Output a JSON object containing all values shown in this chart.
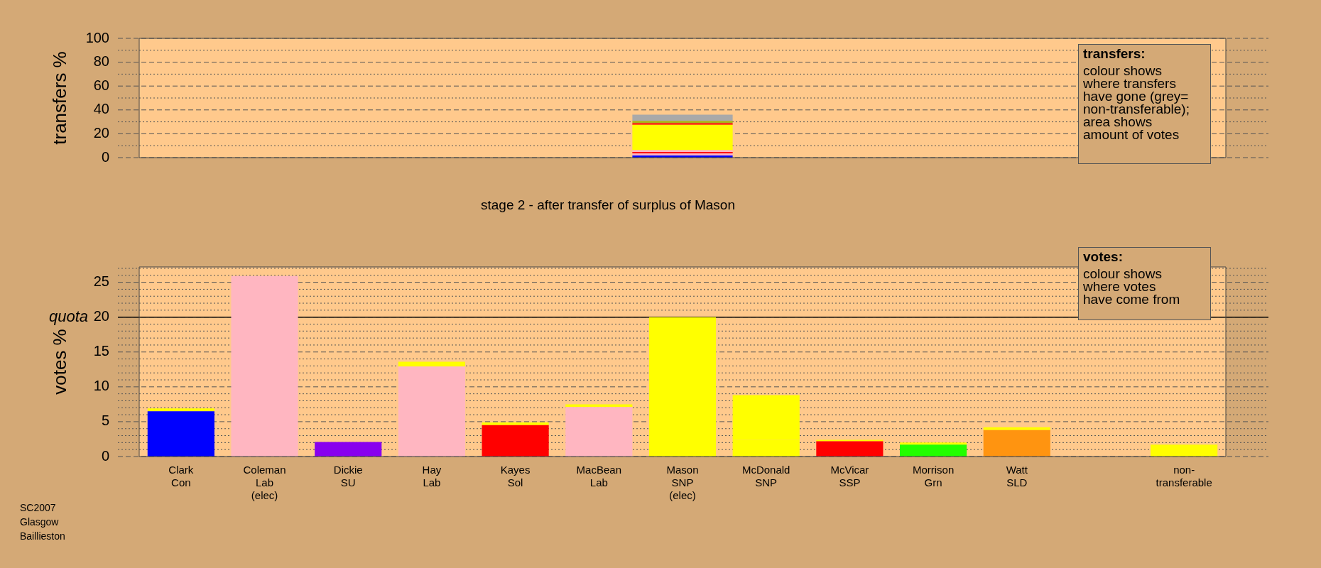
{
  "chart_data": [
    {
      "type": "bar",
      "stacked": true,
      "ylabel": "transfers %",
      "tick_labels": "y",
      "grid": true,
      "categories": [
        null,
        null,
        null,
        null,
        null,
        null,
        null,
        null,
        null,
        null,
        null,
        null,
        null
      ],
      "series": [
        {
          "color": "#0000ff",
          "values": [
            null,
            null,
            null,
            null,
            null,
            null,
            1.8,
            null,
            null,
            null,
            null,
            null,
            null
          ]
        },
        {
          "color": "#ffb6c1",
          "values": [
            null,
            null,
            null,
            null,
            null,
            null,
            1.8,
            null,
            null,
            null,
            null,
            null,
            null
          ]
        },
        {
          "color": "#ff0000",
          "values": [
            null,
            null,
            null,
            null,
            null,
            null,
            1.2,
            null,
            null,
            null,
            null,
            null,
            null
          ]
        },
        {
          "color": "#ffb6c1",
          "values": [
            null,
            null,
            null,
            null,
            null,
            null,
            1.4,
            null,
            null,
            null,
            null,
            null,
            null
          ]
        },
        {
          "color": "#ffff00",
          "values": [
            null,
            null,
            null,
            null,
            null,
            null,
            21.4,
            null,
            null,
            null,
            null,
            null,
            null
          ]
        },
        {
          "color": "#ff0000",
          "values": [
            null,
            null,
            null,
            null,
            null,
            null,
            1.3,
            null,
            null,
            null,
            null,
            null,
            null
          ]
        },
        {
          "color": "#a8b418",
          "values": [
            null,
            null,
            null,
            null,
            null,
            null,
            1.9,
            null,
            null,
            null,
            null,
            null,
            null
          ]
        },
        {
          "color": "#a9a9a9",
          "values": [
            null,
            null,
            null,
            null,
            null,
            null,
            5.2,
            null,
            null,
            null,
            null,
            null,
            null
          ]
        }
      ],
      "ylim": [
        0,
        100
      ],
      "yticks": [
        0,
        {
          "value": 10,
          "label": null
        },
        20,
        {
          "value": 30,
          "label": null
        },
        40,
        {
          "value": 50,
          "label": null
        },
        60,
        {
          "value": 70,
          "label": null
        },
        80,
        {
          "value": 90,
          "label": null
        },
        100
      ],
      "annotations": [
        "transfers:",
        "colour shows\nwhere transfers\nhave gone (grey=\nnon-transferable);\narea shows\namount of votes"
      ]
    },
    {
      "type": "bar",
      "stacked": true,
      "title": "stage 2 - after transfer of surplus of Mason",
      "ylabel": "votes %",
      "grid": true,
      "categories": [
        "Clark\nCon",
        "Coleman\nLab\n(elec)",
        "Dickie\nSU",
        "Hay\nLab",
        "Kayes\nSol",
        "MacBean\nLab",
        "Mason\nSNP\n(elec)",
        "McDonald\nSNP",
        "McVicar\nSSP",
        "Morrison\nGrn",
        "Watt\nSLD",
        null,
        "non-\ntransferable"
      ],
      "series": [
        {
          "colors": [
            "#0000ff",
            "#ffb6c1",
            "#8800ee",
            "#ffb6c1",
            "#ff0000",
            "#ffb6c1",
            "#ffff00",
            "#ffff00",
            "#ff0000",
            "#22ff00",
            "#ff9410",
            null,
            null
          ],
          "values": [
            6.5,
            25.9,
            2.1,
            12.9,
            4.5,
            7.1,
            20.0,
            2.4,
            2.2,
            1.7,
            3.8,
            null,
            null
          ]
        },
        {
          "color": "#ffff00",
          "values": [
            0.4,
            null,
            null,
            0.7,
            0.4,
            0.4,
            null,
            6.4,
            0.2,
            0.3,
            0.4,
            null,
            1.7
          ]
        }
      ],
      "ylim": [
        0,
        27.2
      ],
      "yticks": [
        0,
        {
          "value": 1,
          "label": null
        },
        {
          "value": 2,
          "label": null
        },
        {
          "value": 3,
          "label": null
        },
        {
          "value": 4,
          "label": null
        },
        5,
        {
          "value": 6,
          "label": null
        },
        {
          "value": 7,
          "label": null
        },
        {
          "value": 8,
          "label": null
        },
        {
          "value": 9,
          "label": null
        },
        10,
        {
          "value": 11,
          "label": null
        },
        {
          "value": 12,
          "label": null
        },
        {
          "value": 13,
          "label": null
        },
        {
          "value": 14,
          "label": null
        },
        15,
        {
          "value": 16,
          "label": null
        },
        {
          "value": 17,
          "label": null
        },
        {
          "value": 18,
          "label": null
        },
        {
          "value": 19,
          "label": null
        },
        20,
        {
          "value": 21,
          "label": null
        },
        {
          "value": 22,
          "label": null
        },
        {
          "value": 23,
          "label": null
        },
        {
          "value": 24,
          "label": null
        },
        25,
        {
          "value": 26,
          "label": null
        },
        {
          "value": 27,
          "label": null
        }
      ],
      "ref_lines": [
        {
          "axis": "y",
          "value": 20,
          "label": "quota"
        }
      ],
      "annotations": [
        "votes:",
        "colour shows\nwhere votes\nhave come from",
        "SC2007\nGlasgow\nBaillieston"
      ]
    }
  ]
}
